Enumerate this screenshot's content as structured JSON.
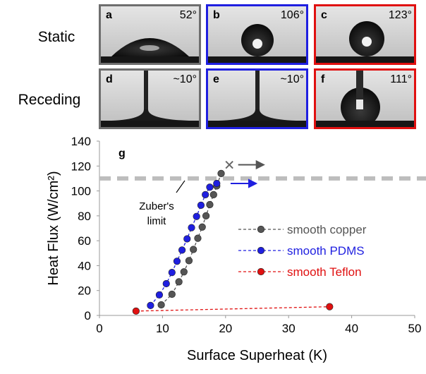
{
  "panels": {
    "row_labels": [
      "Static",
      "Receding"
    ],
    "items": [
      {
        "label": "a",
        "angle": "52°",
        "color": "#6e6e6e"
      },
      {
        "label": "b",
        "angle": "106°",
        "color": "#1f1fe0"
      },
      {
        "label": "c",
        "angle": "123°",
        "color": "#e01010"
      },
      {
        "label": "d",
        "angle": "~10°",
        "color": "#6e6e6e"
      },
      {
        "label": "e",
        "angle": "~10°",
        "color": "#1f1fe0"
      },
      {
        "label": "f",
        "angle": "111°",
        "color": "#e01010"
      }
    ]
  },
  "chart_data": {
    "type": "line",
    "panel_label": "g",
    "xlabel": "Surface Superheat (K)",
    "ylabel": "Heat Flux (W/cm²)",
    "xlim": [
      0,
      50
    ],
    "xticks": [
      0,
      10,
      20,
      30,
      40,
      50
    ],
    "ylim": [
      0,
      140
    ],
    "yticks": [
      0,
      20,
      40,
      60,
      80,
      100,
      120,
      140
    ],
    "series": [
      {
        "name": "smooth copper",
        "color": "#555555",
        "x": [
          9.8,
          11.5,
          12.6,
          13.4,
          14.2,
          14.9,
          15.6,
          16.3,
          16.9,
          17.5,
          18.1,
          18.6,
          19.3
        ],
        "values": [
          8.5,
          17,
          27,
          35,
          44,
          53,
          62,
          71,
          80,
          89,
          97,
          104,
          114
        ]
      },
      {
        "name": "smooth PDMS",
        "color": "#1f1fe0",
        "x": [
          8.1,
          9.5,
          10.6,
          11.5,
          12.3,
          13.1,
          13.9,
          14.6,
          15.4,
          16.1,
          16.8,
          17.5,
          18.6
        ],
        "values": [
          8,
          16.5,
          25.5,
          34.5,
          43.5,
          52.5,
          61.5,
          70.5,
          79.5,
          88.5,
          97,
          103,
          106
        ]
      },
      {
        "name": "smooth Teflon",
        "color": "#e01010",
        "x": [
          5.8,
          36.5
        ],
        "values": [
          3.5,
          7
        ]
      }
    ],
    "reference_line": {
      "value": 110,
      "label": "Zuber's limit"
    },
    "end_markers": [
      {
        "x": 20.6,
        "y": 121,
        "color": "#666666"
      }
    ],
    "arrows": [
      {
        "x": 22,
        "y": 121,
        "color": "#555555"
      },
      {
        "x": 20.8,
        "y": 106,
        "color": "#1f1fe0"
      }
    ]
  }
}
